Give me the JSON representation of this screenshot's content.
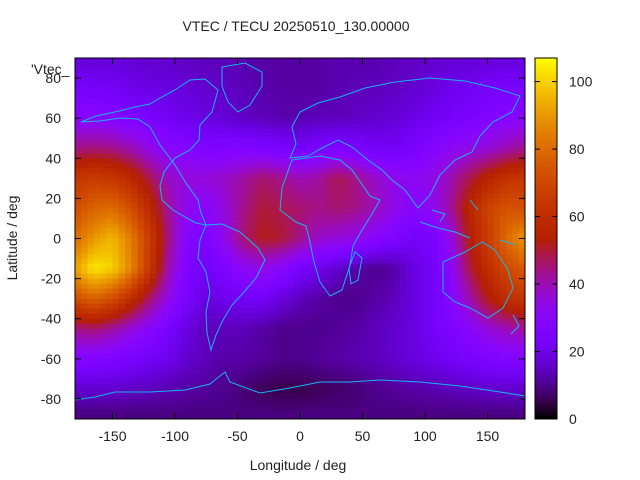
{
  "chart_data": {
    "type": "heatmap",
    "title": "VTEC / TECU 20250510_130.00000",
    "xlabel": "Longitude / deg",
    "ylabel": "Latitude / deg",
    "key_label": "'Vtec_",
    "xlim": [
      -180,
      180
    ],
    "ylim": [
      -90,
      90
    ],
    "x_ticks": [
      -150,
      -100,
      -50,
      0,
      50,
      100,
      150
    ],
    "y_ticks": [
      -80,
      -60,
      -40,
      -20,
      0,
      20,
      40,
      60,
      80
    ],
    "colorbar": {
      "range": [
        0,
        107
      ],
      "ticks": [
        0,
        20,
        40,
        60,
        80,
        100
      ],
      "palette": "black-purple-red-orange-yellow"
    },
    "grid_lon": [
      -180,
      -165,
      -150,
      -135,
      -120,
      -105,
      -90,
      -75,
      -60,
      -45,
      -30,
      -15,
      0,
      15,
      30,
      45,
      60,
      75,
      90,
      105,
      120,
      135,
      150,
      165,
      180
    ],
    "grid_lat": [
      87.5,
      75,
      60,
      45,
      30,
      15,
      0,
      -15,
      -30,
      -45,
      -60,
      -75,
      -87.5
    ],
    "vtec_grid": [
      [
        18,
        17,
        18,
        17,
        16,
        16,
        15,
        14,
        14,
        13,
        12,
        12,
        12,
        12,
        13,
        13,
        13,
        14,
        15,
        16,
        17,
        17,
        18,
        18,
        18
      ],
      [
        24,
        23,
        22,
        20,
        19,
        18,
        17,
        16,
        15,
        14,
        13,
        12,
        12,
        12,
        13,
        14,
        14,
        15,
        16,
        18,
        20,
        21,
        23,
        24,
        24
      ],
      [
        30,
        30,
        28,
        26,
        24,
        22,
        20,
        18,
        17,
        15,
        14,
        13,
        13,
        14,
        14,
        15,
        16,
        17,
        19,
        21,
        23,
        25,
        27,
        29,
        30
      ],
      [
        44,
        45,
        44,
        40,
        34,
        30,
        28,
        26,
        26,
        27,
        26,
        24,
        22,
        24,
        26,
        24,
        22,
        22,
        24,
        28,
        32,
        34,
        36,
        40,
        44
      ],
      [
        64,
        66,
        64,
        58,
        48,
        38,
        36,
        36,
        38,
        42,
        46,
        44,
        40,
        42,
        48,
        44,
        38,
        34,
        32,
        34,
        40,
        48,
        56,
        62,
        64
      ],
      [
        72,
        78,
        80,
        72,
        58,
        42,
        32,
        30,
        36,
        44,
        50,
        48,
        46,
        44,
        46,
        44,
        40,
        34,
        30,
        32,
        42,
        56,
        68,
        74,
        72
      ],
      [
        80,
        90,
        96,
        84,
        66,
        44,
        28,
        26,
        34,
        46,
        52,
        50,
        44,
        38,
        36,
        34,
        30,
        26,
        22,
        24,
        34,
        52,
        66,
        80,
        90
      ],
      [
        92,
        104,
        100,
        86,
        64,
        40,
        26,
        22,
        26,
        32,
        34,
        30,
        24,
        20,
        16,
        12,
        10,
        12,
        18,
        22,
        30,
        48,
        60,
        70,
        76
      ],
      [
        72,
        78,
        72,
        60,
        46,
        34,
        24,
        18,
        20,
        22,
        22,
        18,
        14,
        12,
        10,
        10,
        12,
        14,
        18,
        22,
        28,
        40,
        52,
        60,
        64
      ],
      [
        44,
        46,
        42,
        36,
        30,
        24,
        18,
        14,
        14,
        14,
        12,
        10,
        10,
        10,
        11,
        12,
        14,
        16,
        18,
        22,
        26,
        30,
        36,
        40,
        42
      ],
      [
        28,
        28,
        26,
        24,
        22,
        20,
        16,
        14,
        12,
        12,
        11,
        10,
        10,
        11,
        12,
        13,
        14,
        16,
        18,
        20,
        22,
        24,
        26,
        27,
        28
      ],
      [
        16,
        16,
        16,
        15,
        14,
        13,
        12,
        11,
        10,
        8,
        6,
        5,
        5,
        6,
        7,
        8,
        10,
        11,
        12,
        13,
        14,
        15,
        16,
        16,
        16
      ],
      [
        9,
        9,
        9,
        9,
        9,
        9,
        9,
        9,
        9,
        9,
        9,
        9,
        9,
        9,
        9,
        9,
        9,
        9,
        9,
        9,
        9,
        9,
        9,
        9,
        9
      ]
    ]
  }
}
